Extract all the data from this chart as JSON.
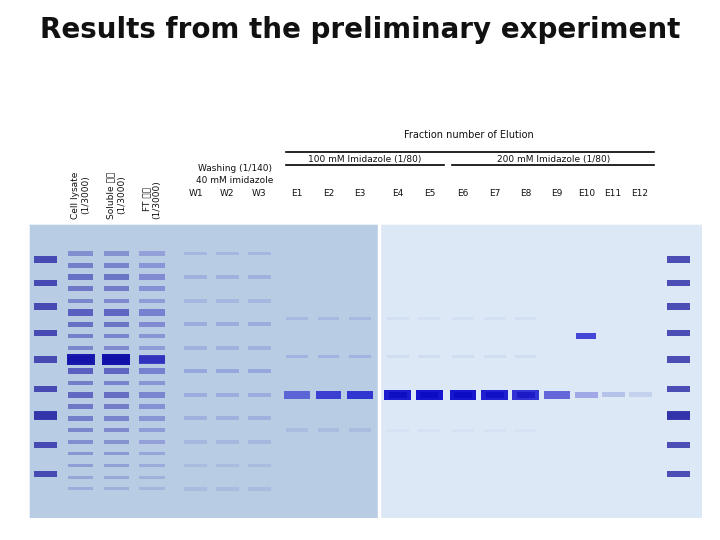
{
  "title": "Results from the preliminary experiment",
  "title_fontsize": 20,
  "title_fontweight": "bold",
  "background_color": "#ffffff",
  "fraction_label": "Fraction number of Elution",
  "wash_label1": "Washing (1/140)",
  "wash_label2": "40 mM imidazole",
  "imidazole_100_label": "100 mM Imidazole (1/80)",
  "imidazole_200_label": "200 mM Imidazole (1/80)",
  "lane_labels": [
    "W1",
    "W2",
    "W3",
    "E1",
    "E2",
    "E3",
    "E4",
    "E5",
    "E6",
    "E7",
    "E8",
    "E9",
    "E10",
    "E11",
    "E12"
  ],
  "rotated_labels": [
    {
      "text": "Cell lysate\n(1/3000)"
    },
    {
      "text": "Soluble 시료\n(1/3000)"
    },
    {
      "text": "FT 시료\n(1/3000)"
    }
  ],
  "font_size_small": 6.5,
  "font_size_lane": 6.5
}
